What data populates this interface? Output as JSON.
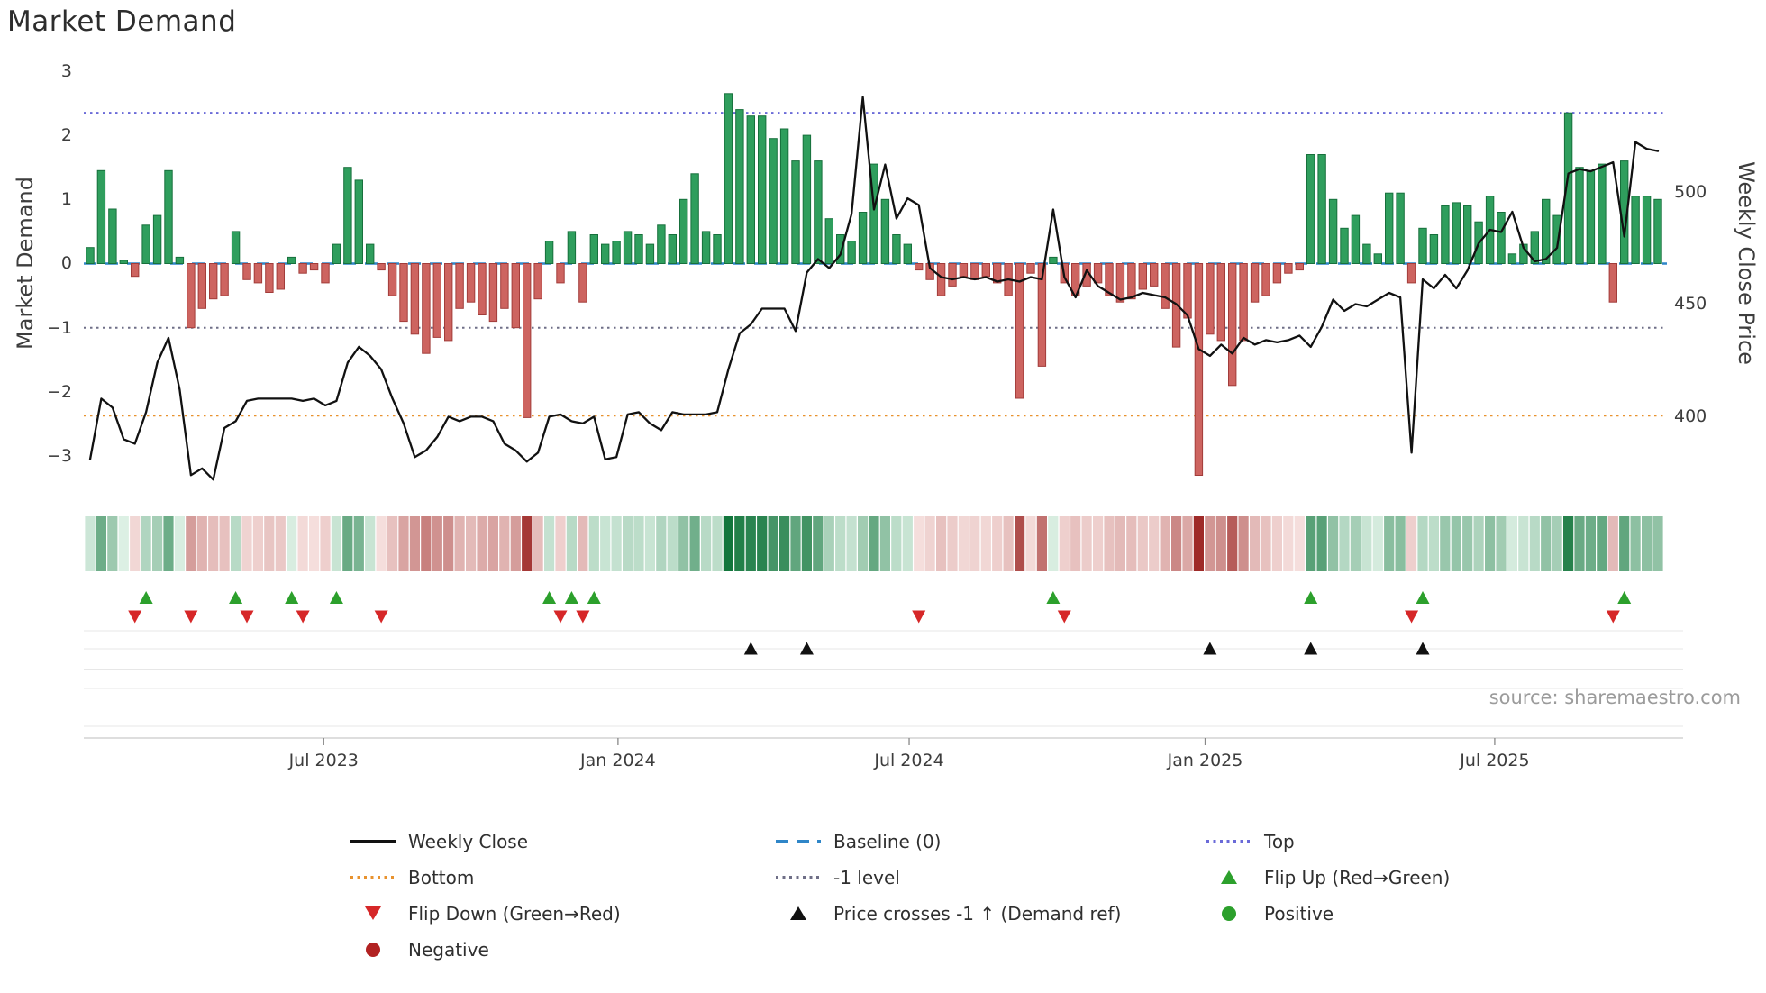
{
  "colors": {
    "bar_positive_fill": "#2f9e5d",
    "bar_positive_edge": "#17703c",
    "bar_negative_fill": "#cd6460",
    "bar_negative_edge": "#a23c3a",
    "price_line": "#111111",
    "baseline": "#2f86c8",
    "top_line": "#6a6ad8",
    "minus_one_line": "#6f6f87",
    "bottom_line": "#e8922e",
    "flip_up": "#2ca02c",
    "flip_down": "#d62728",
    "cross_marker": "#111111",
    "positive_dot": "#2ca02c",
    "negative_dot": "#b22222",
    "heat_pos_light": [
      224,
      242,
      231
    ],
    "heat_pos_dark": [
      18,
      118,
      60
    ],
    "heat_neg_light": [
      248,
      229,
      227
    ],
    "heat_neg_dark": [
      158,
      42,
      40
    ]
  },
  "chart_data": {
    "type": "combo-bar-line-heatmap",
    "title": "Market Demand",
    "source": "source: sharemaestro.com",
    "weeks": 141,
    "x_tick_labels": [
      "Jul 2023",
      "Jan 2024",
      "Jul 2024",
      "Jan 2025",
      "Jul 2025"
    ],
    "x_tick_weeks": [
      20.86,
      47.14,
      73.14,
      99.57,
      125.43
    ],
    "left_axis": {
      "label": "Market Demand",
      "ticks": [
        3,
        2,
        1,
        0,
        -1,
        -2,
        -3
      ],
      "tick_labels": [
        "3",
        "2",
        "1",
        "0",
        "−1",
        "−2",
        "−3"
      ],
      "range": [
        -3.6,
        3.1
      ]
    },
    "right_axis": {
      "label": "Weekly Close Price",
      "ticks": [
        500,
        450,
        400
      ],
      "tick_labels": [
        "500",
        "450",
        "400"
      ],
      "price_at_demand_zero": 468,
      "price_per_demand_unit": 28.5
    },
    "reference_lines": {
      "top": 2.35,
      "baseline": 0,
      "minus_one": -1,
      "bottom": -2.37
    },
    "demand": [
      0.25,
      1.45,
      0.85,
      0.05,
      -0.2,
      0.6,
      0.75,
      1.45,
      0.1,
      -1.0,
      -0.7,
      -0.55,
      -0.5,
      0.5,
      -0.25,
      -0.3,
      -0.45,
      -0.4,
      0.1,
      -0.15,
      -0.1,
      -0.3,
      0.3,
      1.5,
      1.3,
      0.3,
      -0.1,
      -0.5,
      -0.9,
      -1.1,
      -1.4,
      -1.15,
      -1.2,
      -0.7,
      -0.6,
      -0.8,
      -0.9,
      -0.7,
      -1.0,
      -2.4,
      -0.55,
      0.35,
      -0.3,
      0.5,
      -0.6,
      0.45,
      0.3,
      0.35,
      0.5,
      0.45,
      0.3,
      0.6,
      0.45,
      1.0,
      1.4,
      0.5,
      0.45,
      2.65,
      2.4,
      2.3,
      2.3,
      1.95,
      2.1,
      1.6,
      2.0,
      1.6,
      0.7,
      0.45,
      0.35,
      0.8,
      1.55,
      1.0,
      0.45,
      0.3,
      -0.1,
      -0.25,
      -0.5,
      -0.35,
      -0.2,
      -0.25,
      -0.2,
      -0.3,
      -0.5,
      -2.1,
      -0.15,
      -1.6,
      0.1,
      -0.3,
      -0.5,
      -0.35,
      -0.3,
      -0.5,
      -0.6,
      -0.55,
      -0.4,
      -0.35,
      -0.7,
      -1.3,
      -0.85,
      -3.3,
      -1.1,
      -1.2,
      -1.9,
      -1.2,
      -0.6,
      -0.5,
      -0.3,
      -0.15,
      -0.1,
      1.7,
      1.7,
      1.0,
      0.55,
      0.75,
      0.3,
      0.15,
      1.1,
      1.1,
      -0.3,
      0.55,
      0.45,
      0.9,
      0.95,
      0.9,
      0.65,
      1.05,
      0.8,
      0.15,
      0.3,
      0.5,
      1.0,
      0.75,
      2.35,
      1.5,
      1.45,
      1.55,
      -0.6,
      1.6,
      1.05,
      1.05,
      1.0
    ],
    "price": [
      381,
      408,
      404,
      390,
      388,
      402,
      424,
      435,
      412,
      374,
      377,
      372,
      395,
      398,
      407,
      408,
      408,
      408,
      408,
      407,
      408,
      405,
      407,
      424,
      431,
      427,
      421,
      408,
      397,
      382,
      385,
      391,
      400,
      398,
      400,
      400,
      398,
      388,
      385,
      380,
      384,
      400,
      401,
      398,
      397,
      400,
      381,
      382,
      401,
      402,
      397,
      394,
      402,
      401,
      401,
      401,
      402,
      421,
      437,
      441,
      448,
      448,
      448,
      438,
      464,
      470,
      466,
      472,
      490,
      542,
      492,
      512,
      488,
      497,
      494,
      466,
      462,
      461,
      462,
      461,
      462,
      460,
      461,
      460,
      462,
      461,
      492,
      462,
      453,
      465,
      458,
      455,
      452,
      453,
      455,
      454,
      453,
      450,
      445,
      430,
      427,
      432,
      428,
      435,
      432,
      434,
      433,
      434,
      436,
      431,
      440,
      452,
      447,
      450,
      449,
      452,
      455,
      453,
      384,
      461,
      457,
      463,
      457,
      465,
      477,
      483,
      482,
      491,
      475,
      469,
      470,
      475,
      508,
      510,
      509,
      511,
      513,
      480,
      522,
      519,
      518
    ],
    "flip_up_weeks": [
      5,
      13,
      18,
      22,
      41,
      43,
      45,
      86,
      109,
      119,
      137
    ],
    "flip_down_weeks": [
      4,
      9,
      14,
      19,
      26,
      42,
      44,
      74,
      87,
      118,
      136
    ],
    "price_cross_weeks": [
      59,
      64,
      100,
      109,
      119
    ],
    "legend_entries": [
      "Weekly Close",
      "Baseline (0)",
      "Top",
      "Bottom",
      "-1 level",
      "Flip Up (Red→Green)",
      "Flip Down (Green→Red)",
      "Price crosses -1 ↑ (Demand ref)",
      "Positive",
      "Negative"
    ]
  }
}
